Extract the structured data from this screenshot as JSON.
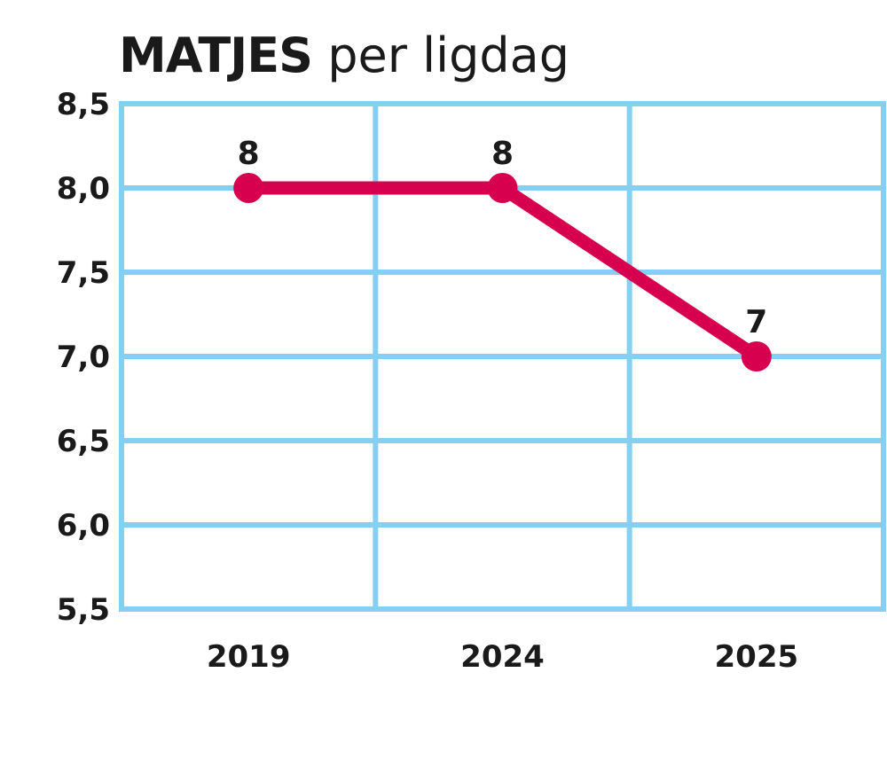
{
  "chart_data": {
    "type": "line",
    "title_bold": "MATJES",
    "title_rest": "per ligdag",
    "categories": [
      "2019",
      "2024",
      "2025"
    ],
    "values": [
      8,
      8,
      7
    ],
    "data_labels": [
      "8",
      "8",
      "7"
    ],
    "ylim": [
      5.5,
      8.5
    ],
    "y_ticks": [
      "5,5",
      "6,0",
      "6,5",
      "7,0",
      "7,5",
      "8,0",
      "8,5"
    ],
    "grid": true,
    "colors": {
      "line": "#d6004f",
      "grid": "#85cff2",
      "text": "#1a1a1a"
    }
  }
}
